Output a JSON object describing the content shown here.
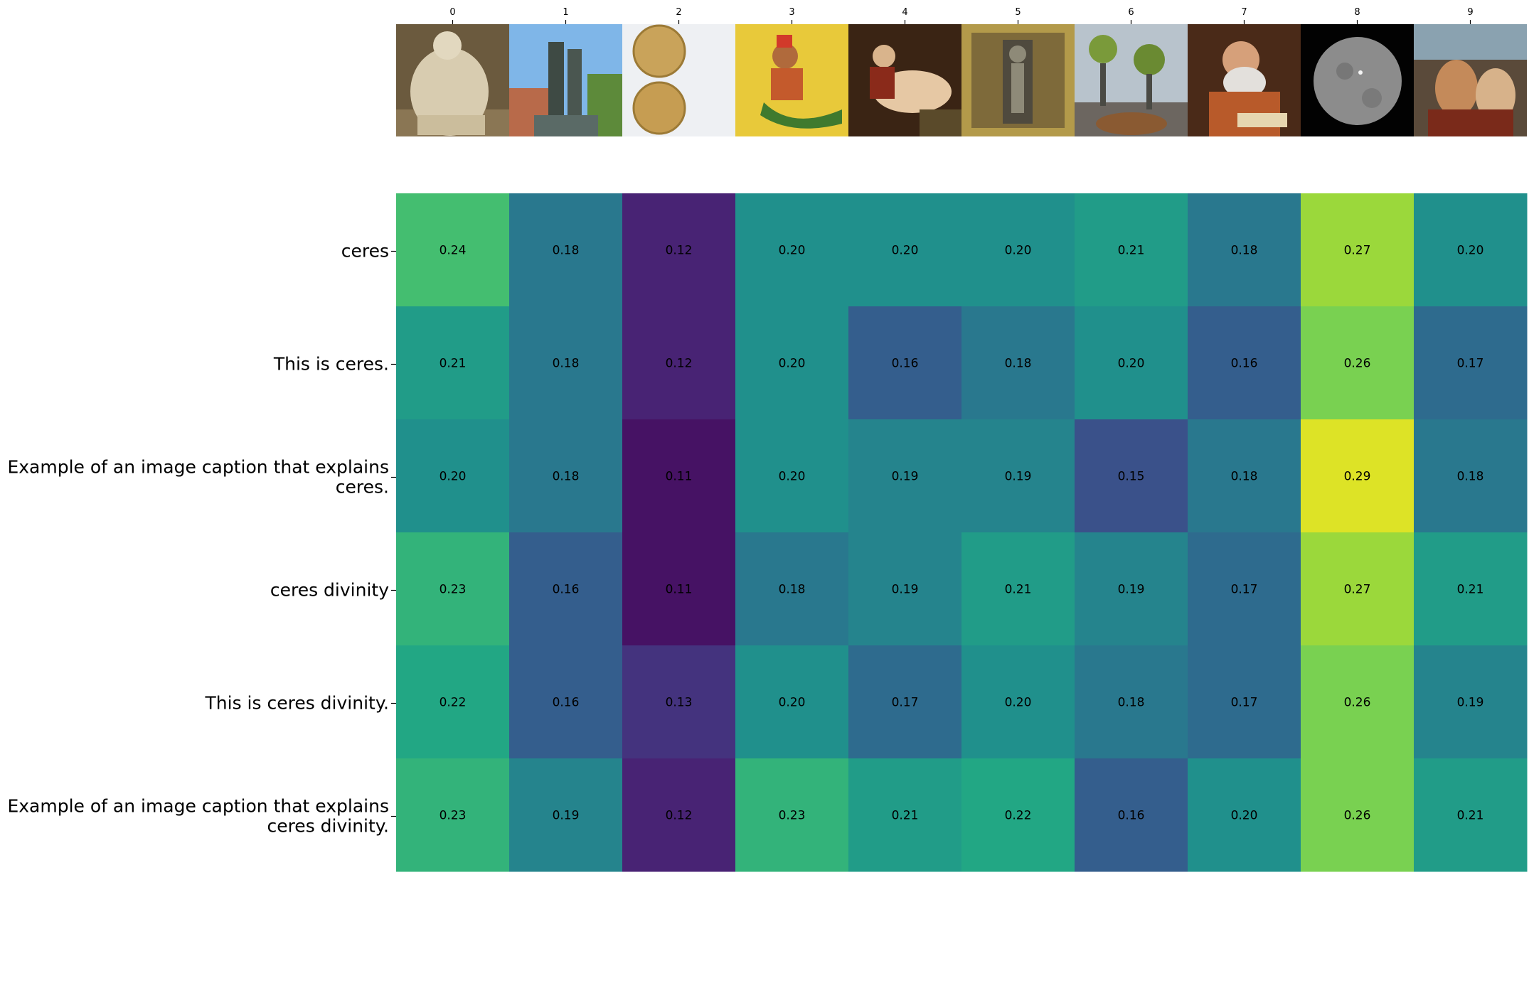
{
  "chart_data": {
    "type": "heatmap",
    "columns": [
      "0",
      "1",
      "2",
      "3",
      "4",
      "5",
      "6",
      "7",
      "8",
      "9"
    ],
    "thumbnails": [
      {
        "icon": "statue-thumbnail"
      },
      {
        "icon": "bronze-statue-thumbnail"
      },
      {
        "icon": "gold-coins-thumbnail"
      },
      {
        "icon": "mermaid-illustration-thumbnail"
      },
      {
        "icon": "baroque-painting-thumbnail"
      },
      {
        "icon": "framed-relief-thumbnail"
      },
      {
        "icon": "street-sculpture-thumbnail"
      },
      {
        "icon": "scholar-painting-thumbnail"
      },
      {
        "icon": "dwarf-planet-thumbnail"
      },
      {
        "icon": "feast-painting-thumbnail"
      }
    ],
    "rows": [
      [
        "ceres"
      ],
      [
        "This is ceres."
      ],
      [
        "Example of an image caption that explains",
        "ceres."
      ],
      [
        "ceres divinity"
      ],
      [
        "This is ceres divinity."
      ],
      [
        "Example of an image caption that explains",
        "ceres divinity."
      ]
    ],
    "values": [
      [
        0.24,
        0.18,
        0.12,
        0.2,
        0.2,
        0.2,
        0.21,
        0.18,
        0.27,
        0.2
      ],
      [
        0.21,
        0.18,
        0.12,
        0.2,
        0.16,
        0.18,
        0.2,
        0.16,
        0.26,
        0.17
      ],
      [
        0.2,
        0.18,
        0.11,
        0.2,
        0.19,
        0.19,
        0.15,
        0.18,
        0.29,
        0.18
      ],
      [
        0.23,
        0.16,
        0.11,
        0.18,
        0.19,
        0.21,
        0.19,
        0.17,
        0.27,
        0.21
      ],
      [
        0.22,
        0.16,
        0.13,
        0.2,
        0.17,
        0.2,
        0.18,
        0.17,
        0.26,
        0.19
      ],
      [
        0.23,
        0.19,
        0.12,
        0.23,
        0.21,
        0.22,
        0.16,
        0.2,
        0.26,
        0.21
      ]
    ],
    "colormap": "viridis",
    "vmin": 0.1,
    "vmax": 0.3
  }
}
